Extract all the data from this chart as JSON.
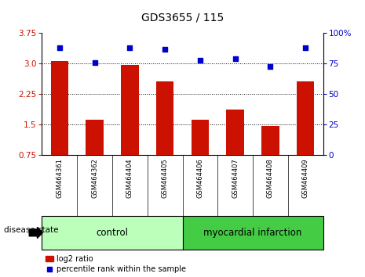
{
  "title": "GDS3655 / 115",
  "samples": [
    "GSM464361",
    "GSM464362",
    "GSM464404",
    "GSM464405",
    "GSM464406",
    "GSM464407",
    "GSM464408",
    "GSM464409"
  ],
  "log2_ratio": [
    3.07,
    1.62,
    2.97,
    2.57,
    1.62,
    1.87,
    1.47,
    2.57
  ],
  "percentile_rank": [
    88,
    76,
    88,
    87,
    78,
    79,
    73,
    88
  ],
  "ylim_left": [
    0.75,
    3.75
  ],
  "ylim_right": [
    0,
    100
  ],
  "yticks_left": [
    0.75,
    1.5,
    2.25,
    3.0,
    3.75
  ],
  "yticks_right": [
    0,
    25,
    50,
    75,
    100
  ],
  "bar_color": "#cc1100",
  "dot_color": "#0000cc",
  "control_samples": 4,
  "control_label": "control",
  "disease_label": "myocardial infarction",
  "control_bg": "#bbffbb",
  "disease_bg": "#44cc44",
  "label_area_bg": "#cccccc",
  "legend_bar_label": "log2 ratio",
  "legend_dot_label": "percentile rank within the sample",
  "disease_state_label": "disease state",
  "title_fontsize": 10,
  "tick_fontsize": 7.5,
  "bar_width": 0.5,
  "grid_yticks": [
    1.5,
    2.25,
    3.0
  ]
}
